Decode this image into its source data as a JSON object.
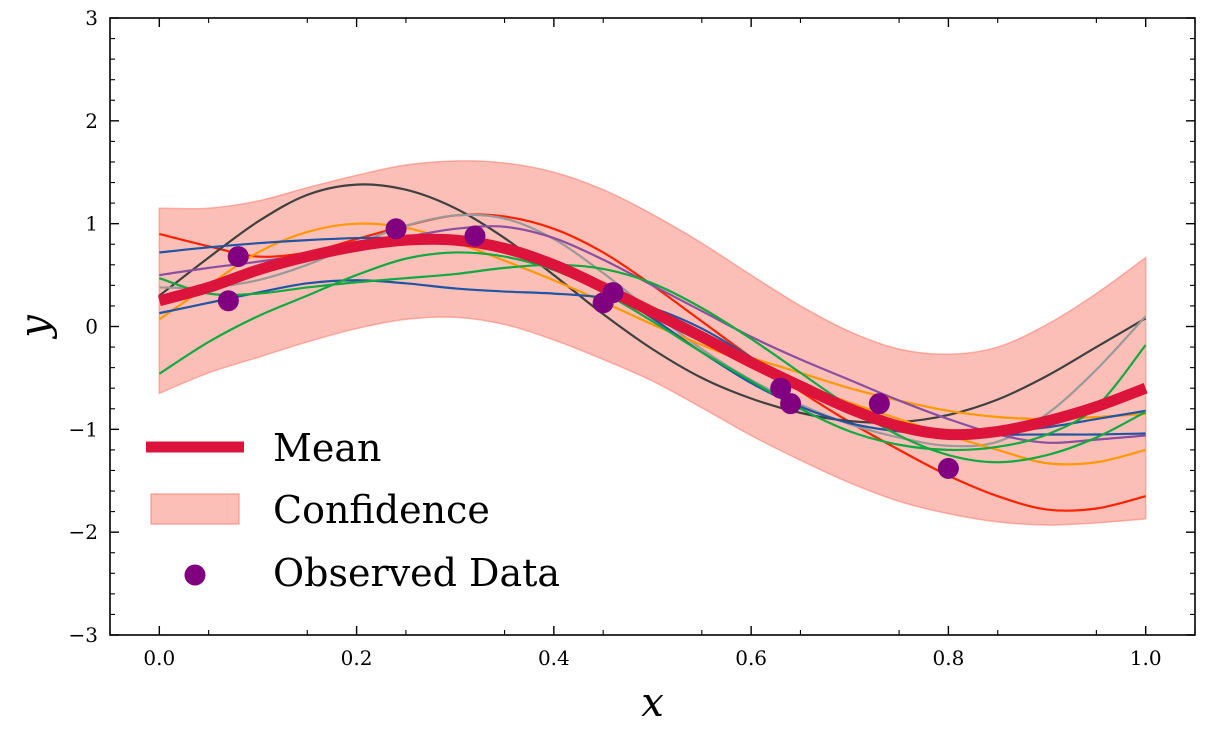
{
  "chart_data": {
    "type": "line",
    "title": "",
    "xlabel": "x",
    "ylabel": "y",
    "xlim": [
      -0.05,
      1.05
    ],
    "ylim": [
      -3,
      3
    ],
    "x_ticks": [
      0.0,
      0.2,
      0.4,
      0.6,
      0.8,
      1.0
    ],
    "x_tick_labels": [
      "0.0",
      "0.2",
      "0.4",
      "0.6",
      "0.8",
      "1.0"
    ],
    "y_ticks": [
      -3,
      -2,
      -1,
      0,
      1,
      2,
      3
    ],
    "y_tick_labels": [
      "−3",
      "−2",
      "−1",
      "0",
      "1",
      "2",
      "3"
    ],
    "grid": false,
    "legend_position": "lower-left",
    "x": [
      0.0,
      0.05,
      0.1,
      0.15,
      0.2,
      0.25,
      0.3,
      0.35,
      0.4,
      0.45,
      0.5,
      0.55,
      0.6,
      0.65,
      0.7,
      0.75,
      0.8,
      0.85,
      0.9,
      0.95,
      1.0
    ],
    "mean": {
      "name": "Mean",
      "color": "#dc143c",
      "values": [
        0.25,
        0.38,
        0.55,
        0.68,
        0.78,
        0.84,
        0.84,
        0.76,
        0.6,
        0.38,
        0.14,
        -0.1,
        -0.35,
        -0.58,
        -0.8,
        -0.97,
        -1.05,
        -1.02,
        -0.92,
        -0.78,
        -0.6
      ]
    },
    "confidence": {
      "name": "Confidence",
      "color": "#fa8072",
      "upper": [
        1.15,
        1.15,
        1.22,
        1.35,
        1.47,
        1.57,
        1.61,
        1.59,
        1.5,
        1.33,
        1.09,
        0.81,
        0.5,
        0.2,
        -0.05,
        -0.22,
        -0.27,
        -0.2,
        0.02,
        0.32,
        0.67
      ],
      "lower": [
        -0.65,
        -0.45,
        -0.3,
        -0.15,
        -0.02,
        0.07,
        0.09,
        0.02,
        -0.13,
        -0.32,
        -0.53,
        -0.79,
        -1.06,
        -1.3,
        -1.52,
        -1.7,
        -1.82,
        -1.9,
        -1.93,
        -1.91,
        -1.87
      ]
    },
    "observed": {
      "name": "Observed Data",
      "color": "#800080",
      "points": [
        {
          "x": 0.07,
          "y": 0.25
        },
        {
          "x": 0.08,
          "y": 0.68
        },
        {
          "x": 0.24,
          "y": 0.95
        },
        {
          "x": 0.32,
          "y": 0.88
        },
        {
          "x": 0.45,
          "y": 0.23
        },
        {
          "x": 0.46,
          "y": 0.33
        },
        {
          "x": 0.63,
          "y": -0.6
        },
        {
          "x": 0.64,
          "y": -0.75
        },
        {
          "x": 0.73,
          "y": -0.75
        },
        {
          "x": 0.8,
          "y": -1.38
        }
      ]
    },
    "samples": [
      {
        "color": "#ff2200",
        "values": [
          0.9,
          0.78,
          0.68,
          0.72,
          0.85,
          0.98,
          1.08,
          1.07,
          0.95,
          0.72,
          0.4,
          0.05,
          -0.3,
          -0.63,
          -0.93,
          -1.2,
          -1.45,
          -1.65,
          -1.78,
          -1.77,
          -1.65
        ]
      },
      {
        "color": "#404040",
        "values": [
          0.3,
          0.67,
          1.02,
          1.28,
          1.38,
          1.33,
          1.15,
          0.86,
          0.5,
          0.12,
          -0.22,
          -0.5,
          -0.7,
          -0.84,
          -0.92,
          -0.93,
          -0.86,
          -0.71,
          -0.48,
          -0.2,
          0.08
        ]
      },
      {
        "color": "#999999",
        "values": [
          0.38,
          0.38,
          0.45,
          0.6,
          0.8,
          0.98,
          1.08,
          1.05,
          0.85,
          0.52,
          0.14,
          -0.22,
          -0.52,
          -0.76,
          -0.95,
          -1.08,
          -1.16,
          -1.12,
          -0.85,
          -0.42,
          0.1
        ]
      },
      {
        "color": "#ff9900",
        "values": [
          0.07,
          0.4,
          0.72,
          0.92,
          1.0,
          0.96,
          0.82,
          0.64,
          0.45,
          0.24,
          0.02,
          -0.18,
          -0.37,
          -0.56,
          -0.74,
          -0.9,
          -1.06,
          -1.2,
          -1.33,
          -1.32,
          -1.2
        ]
      },
      {
        "color": "#ff9900",
        "values": [
          0.28,
          0.42,
          0.56,
          0.68,
          0.77,
          0.82,
          0.82,
          0.76,
          0.62,
          0.42,
          0.17,
          -0.1,
          -0.3,
          -0.45,
          -0.6,
          -0.72,
          -0.82,
          -0.88,
          -0.9,
          -0.88,
          -0.85
        ]
      },
      {
        "color": "#1f55a5",
        "values": [
          0.72,
          0.77,
          0.81,
          0.84,
          0.86,
          0.86,
          0.84,
          0.77,
          0.62,
          0.38,
          0.08,
          -0.25,
          -0.55,
          -0.78,
          -0.94,
          -1.02,
          -1.04,
          -1.02,
          -0.98,
          -0.9,
          -0.82
        ]
      },
      {
        "color": "#1f55a5",
        "values": [
          0.13,
          0.23,
          0.33,
          0.42,
          0.45,
          0.42,
          0.37,
          0.34,
          0.32,
          0.28,
          0.18,
          -0.02,
          -0.3,
          -0.58,
          -0.8,
          -0.95,
          -1.03,
          -1.05,
          -1.05,
          -1.05,
          -1.04
        ]
      },
      {
        "color": "#8a4fa0",
        "values": [
          0.5,
          0.57,
          0.63,
          0.7,
          0.78,
          0.87,
          0.95,
          0.97,
          0.86,
          0.65,
          0.4,
          0.15,
          -0.1,
          -0.32,
          -0.52,
          -0.72,
          -0.9,
          -1.05,
          -1.13,
          -1.1,
          -1.06
        ]
      },
      {
        "color": "#10aa40",
        "values": [
          -0.46,
          -0.15,
          0.1,
          0.3,
          0.5,
          0.66,
          0.72,
          0.68,
          0.55,
          0.33,
          0.05,
          -0.25,
          -0.53,
          -0.8,
          -1.02,
          -1.15,
          -1.2,
          -1.17,
          -1.05,
          -0.78,
          -0.18
        ]
      },
      {
        "color": "#10aa40",
        "values": [
          0.47,
          0.32,
          0.32,
          0.38,
          0.43,
          0.47,
          0.51,
          0.57,
          0.6,
          0.56,
          0.42,
          0.18,
          -0.12,
          -0.45,
          -0.78,
          -1.06,
          -1.25,
          -1.32,
          -1.25,
          -1.08,
          -0.83
        ]
      }
    ]
  }
}
